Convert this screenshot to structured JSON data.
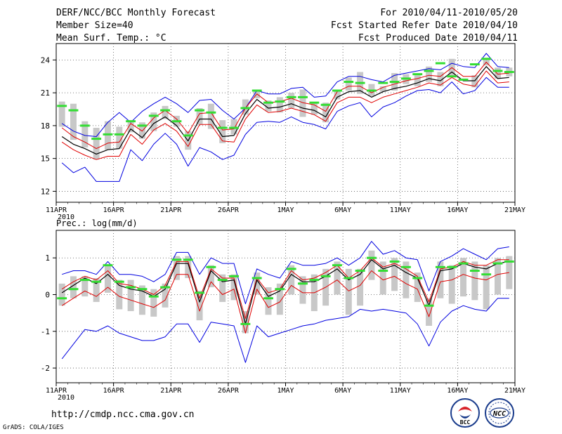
{
  "header": {
    "title": "DERF/NCC/BCC Monthly Forecast",
    "member_size": "Member Size=40",
    "variable": "Mean Surf. Temp.: °C",
    "period": "For 2010/04/11-2010/05/20",
    "fcst_started": "Fcst Started Refer Date 2010/04/10",
    "fcst_produced": "Fcst Produced Date 2010/04/11"
  },
  "footer": {
    "url": "http://cmdp.ncc.cma.gov.cn",
    "grads": "GrADS: COLA/IGES",
    "logo_bcc": "BCC",
    "logo_ncc": "NCC"
  },
  "colors": {
    "mean": "#000000",
    "spread": "#e00000",
    "extreme": "#0000e0",
    "box": "#c8c8c8",
    "median": "#33dd33"
  },
  "chart_data": [
    {
      "type": "line",
      "title": "Mean Surf. Temp.: °C",
      "xlabel": "",
      "ylabel": "",
      "x_ticks": [
        "11APR",
        "16APR",
        "21APR",
        "26APR",
        "1MAY",
        "6MAY",
        "11MAY",
        "16MAY",
        "21MAY"
      ],
      "x_year_label": "2010",
      "days": 40,
      "ylim": [
        11,
        25.5
      ],
      "y_ticks": [
        12,
        15,
        18,
        21,
        24
      ],
      "series": [
        {
          "name": "mean",
          "values": [
            17.0,
            16.3,
            15.9,
            15.4,
            15.8,
            15.9,
            17.7,
            16.9,
            18.2,
            18.8,
            18.0,
            16.6,
            18.6,
            18.6,
            17.0,
            17.1,
            19.1,
            20.4,
            19.6,
            19.7,
            20.0,
            19.6,
            19.4,
            18.8,
            20.6,
            21.1,
            21.2,
            20.6,
            21.1,
            21.4,
            21.6,
            21.9,
            22.3,
            22.1,
            22.9,
            22.1,
            22.1,
            23.4,
            22.3,
            22.4
          ]
        },
        {
          "name": "upper_spread",
          "values": [
            17.8,
            17.0,
            16.5,
            15.9,
            16.4,
            16.5,
            18.2,
            17.5,
            18.7,
            19.4,
            18.6,
            17.3,
            19.1,
            19.2,
            17.6,
            17.7,
            19.6,
            20.9,
            20.1,
            20.2,
            20.5,
            20.1,
            19.9,
            19.3,
            21.1,
            21.6,
            21.6,
            21.0,
            21.5,
            21.8,
            22.1,
            22.3,
            22.6,
            22.5,
            23.3,
            22.5,
            22.5,
            23.8,
            22.7,
            22.8
          ]
        },
        {
          "name": "lower_spread",
          "values": [
            16.5,
            15.8,
            15.3,
            14.9,
            15.2,
            15.2,
            17.2,
            16.3,
            17.6,
            18.2,
            17.5,
            16.1,
            18.1,
            18.1,
            16.6,
            16.5,
            18.6,
            19.9,
            19.2,
            19.3,
            19.6,
            19.3,
            19.0,
            18.4,
            20.1,
            20.6,
            20.6,
            20.1,
            20.6,
            20.9,
            21.2,
            21.5,
            21.9,
            21.7,
            22.4,
            21.8,
            21.6,
            23.0,
            21.9,
            22.0
          ]
        },
        {
          "name": "max",
          "values": [
            18.2,
            17.5,
            17.1,
            17.0,
            18.3,
            19.2,
            18.3,
            19.3,
            20.0,
            20.6,
            20.0,
            19.2,
            20.3,
            20.4,
            19.4,
            18.6,
            19.6,
            21.2,
            20.9,
            20.9,
            21.4,
            21.5,
            20.6,
            20.7,
            22.0,
            22.5,
            22.5,
            22.2,
            22.0,
            22.6,
            22.8,
            23.0,
            23.2,
            23.1,
            23.7,
            23.4,
            23.3,
            24.6,
            23.4,
            23.3
          ]
        },
        {
          "name": "min",
          "values": [
            14.6,
            13.7,
            14.2,
            12.9,
            12.9,
            12.9,
            15.8,
            14.8,
            16.3,
            17.3,
            16.3,
            14.3,
            16.0,
            15.6,
            14.9,
            15.3,
            17.2,
            18.3,
            18.4,
            18.3,
            18.8,
            18.3,
            18.1,
            17.7,
            19.3,
            19.8,
            20.1,
            18.8,
            19.7,
            20.1,
            20.7,
            21.2,
            21.3,
            21.0,
            22.0,
            20.9,
            21.2,
            22.4,
            21.5,
            21.5
          ]
        },
        {
          "name": "box_top",
          "values": [
            20.2,
            20.0,
            18.4,
            17.8,
            18.4,
            17.9,
            18.5,
            18.3,
            19.2,
            19.8,
            18.9,
            17.5,
            19.6,
            20.0,
            18.5,
            18.6,
            20.4,
            21.2,
            20.3,
            20.6,
            21.0,
            21.3,
            20.1,
            20.1,
            21.2,
            22.4,
            22.9,
            21.8,
            21.6,
            22.8,
            22.7,
            22.6,
            23.4,
            22.9,
            24.1,
            22.3,
            22.6,
            24.0,
            23.3,
            23.3
          ]
        },
        {
          "name": "box_bottom",
          "values": [
            17.9,
            16.7,
            16.0,
            14.9,
            15.8,
            15.9,
            17.4,
            16.8,
            17.5,
            18.6,
            17.9,
            15.8,
            18.1,
            17.7,
            16.4,
            17.2,
            19.0,
            20.5,
            19.3,
            19.2,
            19.6,
            18.8,
            19.0,
            18.3,
            20.4,
            21.2,
            20.9,
            20.7,
            21.1,
            21.2,
            21.8,
            21.6,
            22.0,
            21.6,
            22.5,
            22.3,
            21.5,
            23.5,
            22.3,
            22.5
          ]
        },
        {
          "name": "median",
          "values": [
            19.8,
            19.4,
            18.0,
            16.8,
            17.2,
            17.2,
            18.4,
            18.0,
            18.9,
            19.4,
            18.4,
            17.1,
            19.4,
            19.2,
            17.8,
            17.8,
            19.6,
            21.2,
            20.1,
            20.2,
            20.6,
            20.6,
            20.1,
            19.9,
            21.2,
            22.0,
            21.9,
            21.2,
            21.9,
            22.0,
            22.3,
            22.7,
            23.0,
            23.7,
            22.5,
            22.2,
            23.6,
            24.1,
            23.0,
            22.9
          ]
        }
      ]
    },
    {
      "type": "line",
      "title": "Prec.: log(mm/d)",
      "xlabel": "",
      "ylabel": "",
      "x_ticks": [
        "11APR",
        "16APR",
        "21APR",
        "26APR",
        "1MAY",
        "6MAY",
        "11MAY",
        "16MAY",
        "21MAY"
      ],
      "x_year_label": "2010",
      "days": 40,
      "ylim": [
        -2.4,
        1.75
      ],
      "y_ticks": [
        -2,
        -1,
        0,
        1
      ],
      "series": [
        {
          "name": "mean",
          "values": [
            0.05,
            0.25,
            0.45,
            0.3,
            0.55,
            0.25,
            0.15,
            0.1,
            -0.05,
            0.15,
            0.85,
            0.85,
            -0.2,
            0.65,
            0.35,
            0.4,
            -0.8,
            0.4,
            -0.05,
            0.1,
            0.55,
            0.35,
            0.35,
            0.5,
            0.7,
            0.4,
            0.55,
            0.95,
            0.7,
            0.8,
            0.6,
            0.45,
            -0.3,
            0.65,
            0.7,
            0.85,
            0.75,
            0.7,
            0.85,
            0.9
          ]
        },
        {
          "name": "upper_spread",
          "values": [
            0.15,
            0.35,
            0.5,
            0.4,
            0.65,
            0.3,
            0.25,
            0.15,
            0.0,
            0.25,
            0.9,
            0.9,
            -0.1,
            0.7,
            0.45,
            0.45,
            -0.65,
            0.45,
            0.05,
            0.15,
            0.65,
            0.4,
            0.45,
            0.6,
            0.8,
            0.45,
            0.65,
            1.0,
            0.75,
            0.85,
            0.7,
            0.5,
            -0.2,
            0.7,
            0.75,
            0.9,
            0.8,
            0.8,
            0.95,
            0.95
          ]
        },
        {
          "name": "lower_spread",
          "values": [
            -0.3,
            -0.1,
            0.1,
            -0.05,
            0.2,
            -0.05,
            -0.15,
            -0.25,
            -0.35,
            -0.15,
            0.55,
            0.55,
            -0.45,
            0.35,
            0.0,
            0.15,
            -1.05,
            0.15,
            -0.35,
            -0.2,
            0.25,
            0.05,
            0.05,
            0.2,
            0.4,
            0.1,
            0.25,
            0.65,
            0.4,
            0.5,
            0.3,
            0.15,
            -0.6,
            0.35,
            0.4,
            0.55,
            0.45,
            0.4,
            0.55,
            0.6
          ]
        },
        {
          "name": "max",
          "values": [
            0.55,
            0.65,
            0.65,
            0.55,
            0.9,
            0.55,
            0.55,
            0.5,
            0.35,
            0.55,
            1.15,
            1.15,
            0.55,
            1.0,
            0.85,
            0.85,
            -0.25,
            0.7,
            0.55,
            0.45,
            0.9,
            0.8,
            0.8,
            0.85,
            1.0,
            0.8,
            1.0,
            1.45,
            1.1,
            1.2,
            1.0,
            0.95,
            0.1,
            0.9,
            1.05,
            1.25,
            1.1,
            0.95,
            1.25,
            1.3
          ]
        },
        {
          "name": "min",
          "values": [
            -1.75,
            -1.35,
            -0.95,
            -1.0,
            -0.85,
            -1.05,
            -1.15,
            -1.25,
            -1.25,
            -1.15,
            -0.8,
            -0.8,
            -1.3,
            -0.75,
            -0.8,
            -0.85,
            -1.85,
            -0.85,
            -1.15,
            -1.05,
            -0.95,
            -0.85,
            -0.8,
            -0.7,
            -0.65,
            -0.6,
            -0.4,
            -0.45,
            -0.4,
            -0.45,
            -0.5,
            -0.8,
            -1.4,
            -0.75,
            -0.45,
            -0.3,
            -0.4,
            -0.45,
            -0.1,
            -0.1
          ]
        },
        {
          "name": "box_top",
          "values": [
            0.3,
            0.5,
            0.5,
            0.45,
            0.8,
            0.4,
            0.4,
            0.25,
            0.15,
            0.3,
            1.05,
            1.05,
            0.1,
            0.8,
            0.55,
            0.55,
            -0.45,
            0.6,
            0.2,
            0.3,
            0.8,
            0.5,
            0.55,
            0.7,
            0.9,
            0.7,
            0.7,
            1.2,
            0.9,
            1.0,
            0.9,
            0.6,
            -0.1,
            0.9,
            0.8,
            1.0,
            0.9,
            0.8,
            1.0,
            1.05
          ]
        },
        {
          "name": "box_bottom",
          "values": [
            -0.3,
            -0.1,
            -0.05,
            -0.2,
            0.05,
            -0.4,
            -0.45,
            -0.55,
            -0.6,
            -0.35,
            0.4,
            0.45,
            -0.7,
            0.2,
            -0.2,
            -0.15,
            -1.05,
            0.0,
            -0.55,
            -0.55,
            0.0,
            -0.25,
            -0.45,
            -0.3,
            0.0,
            -0.55,
            -0.3,
            0.4,
            0.0,
            0.1,
            -0.1,
            -0.2,
            -0.85,
            -0.1,
            -0.25,
            -0.05,
            -0.15,
            -0.4,
            0.0,
            0.15
          ]
        },
        {
          "name": "median",
          "values": [
            -0.1,
            0.15,
            0.4,
            0.35,
            0.8,
            0.35,
            0.2,
            0.15,
            -0.05,
            0.2,
            0.95,
            0.95,
            0.05,
            0.75,
            0.4,
            0.5,
            -0.8,
            0.45,
            -0.1,
            0.15,
            0.7,
            0.3,
            0.4,
            0.5,
            0.8,
            0.45,
            0.65,
            1.0,
            0.65,
            0.9,
            0.75,
            0.45,
            -0.3,
            0.75,
            0.75,
            0.85,
            0.65,
            0.55,
            0.85,
            0.9
          ]
        }
      ]
    }
  ]
}
